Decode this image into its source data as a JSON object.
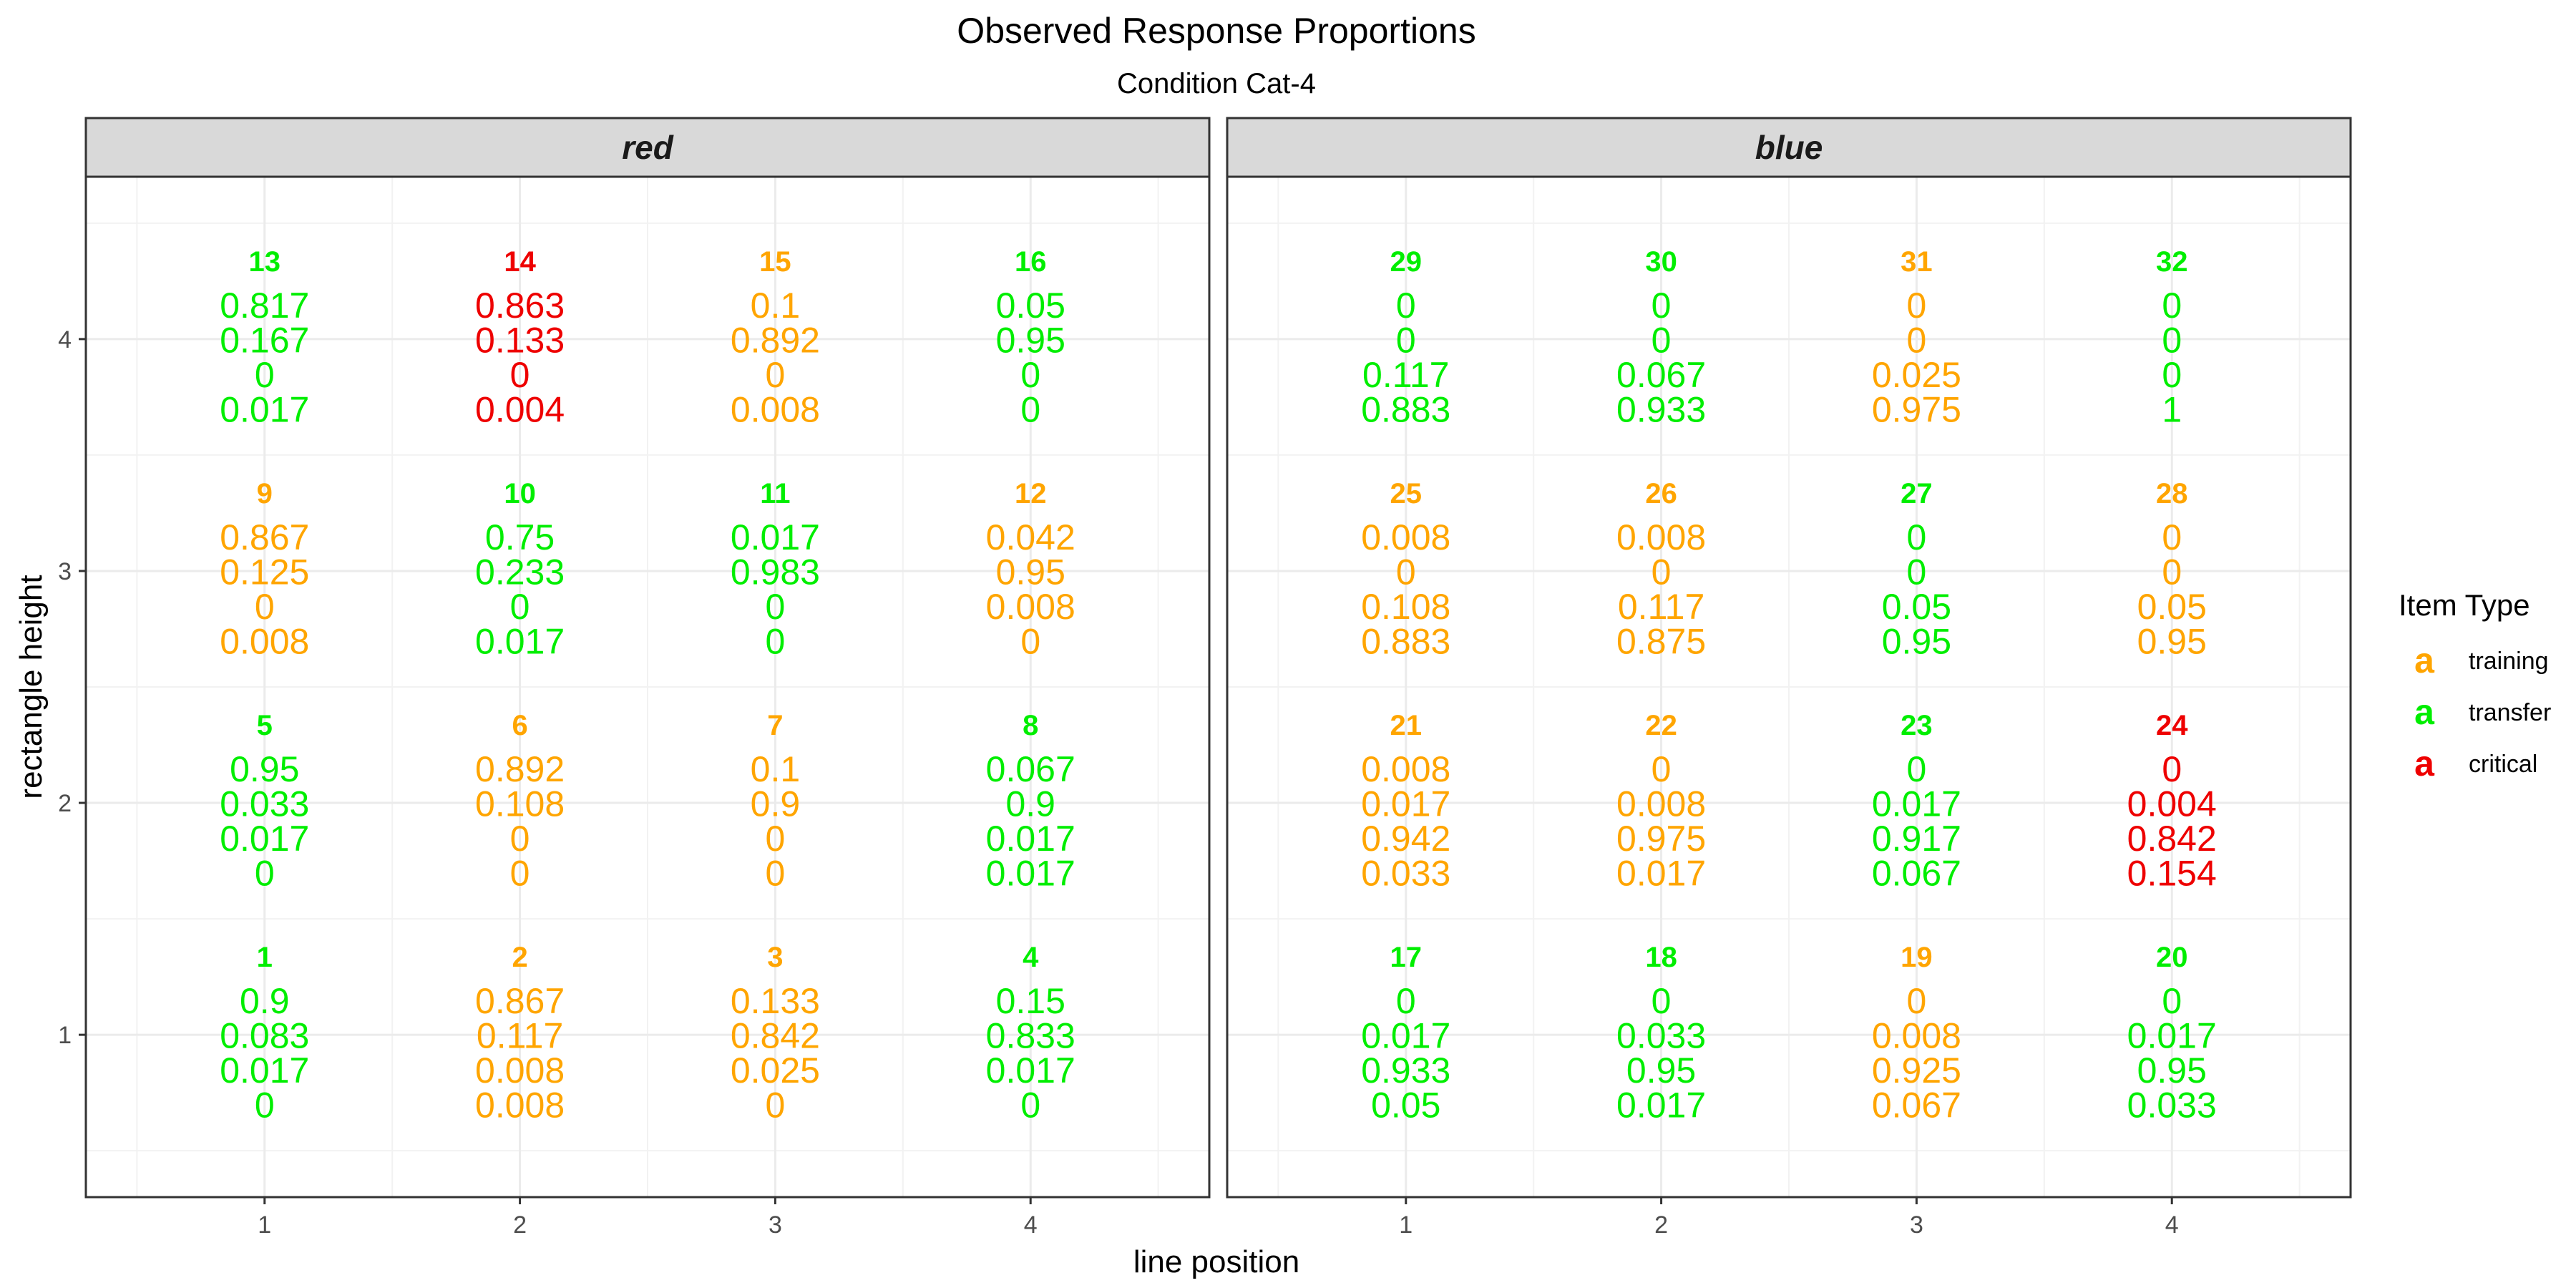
{
  "chart_data": {
    "type": "table",
    "title": "Observed Response Proportions",
    "subtitle": "Condition Cat-4",
    "xlabel": "line position",
    "ylabel": "rectangle height",
    "x_ticks": [
      "1",
      "2",
      "3",
      "4"
    ],
    "y_ticks": [
      "1",
      "2",
      "3",
      "4"
    ],
    "xlim": [
      0.3,
      4.7
    ],
    "ylim": [
      0.3,
      4.7
    ],
    "grid": true,
    "legend": {
      "title": "Item Type",
      "placement": "right",
      "key_glyph": "a",
      "items": [
        {
          "type": "training",
          "label": "training",
          "color": "#FFA500"
        },
        {
          "type": "transfer",
          "label": "transfer",
          "color": "#00EE00"
        },
        {
          "type": "critical",
          "label": "critical",
          "color": "#EE0000"
        }
      ]
    },
    "colors": {
      "training": "#FFA500",
      "transfer": "#00EE00",
      "critical": "#EE0000"
    },
    "panels": [
      {
        "label": "red",
        "items": [
          {
            "id": "13",
            "x": 1,
            "y": 4,
            "type": "transfer",
            "values": [
              "0.817",
              "0.167",
              "0",
              "0.017"
            ]
          },
          {
            "id": "14",
            "x": 2,
            "y": 4,
            "type": "critical",
            "values": [
              "0.863",
              "0.133",
              "0",
              "0.004"
            ]
          },
          {
            "id": "15",
            "x": 3,
            "y": 4,
            "type": "training",
            "values": [
              "0.1",
              "0.892",
              "0",
              "0.008"
            ]
          },
          {
            "id": "16",
            "x": 4,
            "y": 4,
            "type": "transfer",
            "values": [
              "0.05",
              "0.95",
              "0",
              "0"
            ]
          },
          {
            "id": "9",
            "x": 1,
            "y": 3,
            "type": "training",
            "values": [
              "0.867",
              "0.125",
              "0",
              "0.008"
            ]
          },
          {
            "id": "10",
            "x": 2,
            "y": 3,
            "type": "transfer",
            "values": [
              "0.75",
              "0.233",
              "0",
              "0.017"
            ]
          },
          {
            "id": "11",
            "x": 3,
            "y": 3,
            "type": "transfer",
            "values": [
              "0.017",
              "0.983",
              "0",
              "0"
            ]
          },
          {
            "id": "12",
            "x": 4,
            "y": 3,
            "type": "training",
            "values": [
              "0.042",
              "0.95",
              "0.008",
              "0"
            ]
          },
          {
            "id": "5",
            "x": 1,
            "y": 2,
            "type": "transfer",
            "values": [
              "0.95",
              "0.033",
              "0.017",
              "0"
            ]
          },
          {
            "id": "6",
            "x": 2,
            "y": 2,
            "type": "training",
            "values": [
              "0.892",
              "0.108",
              "0",
              "0"
            ]
          },
          {
            "id": "7",
            "x": 3,
            "y": 2,
            "type": "training",
            "values": [
              "0.1",
              "0.9",
              "0",
              "0"
            ]
          },
          {
            "id": "8",
            "x": 4,
            "y": 2,
            "type": "transfer",
            "values": [
              "0.067",
              "0.9",
              "0.017",
              "0.017"
            ]
          },
          {
            "id": "1",
            "x": 1,
            "y": 1,
            "type": "transfer",
            "values": [
              "0.9",
              "0.083",
              "0.017",
              "0"
            ]
          },
          {
            "id": "2",
            "x": 2,
            "y": 1,
            "type": "training",
            "values": [
              "0.867",
              "0.117",
              "0.008",
              "0.008"
            ]
          },
          {
            "id": "3",
            "x": 3,
            "y": 1,
            "type": "training",
            "values": [
              "0.133",
              "0.842",
              "0.025",
              "0"
            ]
          },
          {
            "id": "4",
            "x": 4,
            "y": 1,
            "type": "transfer",
            "values": [
              "0.15",
              "0.833",
              "0.017",
              "0"
            ]
          }
        ]
      },
      {
        "label": "blue",
        "items": [
          {
            "id": "29",
            "x": 1,
            "y": 4,
            "type": "transfer",
            "values": [
              "0",
              "0",
              "0.117",
              "0.883"
            ]
          },
          {
            "id": "30",
            "x": 2,
            "y": 4,
            "type": "transfer",
            "values": [
              "0",
              "0",
              "0.067",
              "0.933"
            ]
          },
          {
            "id": "31",
            "x": 3,
            "y": 4,
            "type": "training",
            "values": [
              "0",
              "0",
              "0.025",
              "0.975"
            ]
          },
          {
            "id": "32",
            "x": 4,
            "y": 4,
            "type": "transfer",
            "values": [
              "0",
              "0",
              "0",
              "1"
            ]
          },
          {
            "id": "25",
            "x": 1,
            "y": 3,
            "type": "training",
            "values": [
              "0.008",
              "0",
              "0.108",
              "0.883"
            ]
          },
          {
            "id": "26",
            "x": 2,
            "y": 3,
            "type": "training",
            "values": [
              "0.008",
              "0",
              "0.117",
              "0.875"
            ]
          },
          {
            "id": "27",
            "x": 3,
            "y": 3,
            "type": "transfer",
            "values": [
              "0",
              "0",
              "0.05",
              "0.95"
            ]
          },
          {
            "id": "28",
            "x": 4,
            "y": 3,
            "type": "training",
            "values": [
              "0",
              "0",
              "0.05",
              "0.95"
            ]
          },
          {
            "id": "21",
            "x": 1,
            "y": 2,
            "type": "training",
            "values": [
              "0.008",
              "0.017",
              "0.942",
              "0.033"
            ]
          },
          {
            "id": "22",
            "x": 2,
            "y": 2,
            "type": "training",
            "values": [
              "0",
              "0.008",
              "0.975",
              "0.017"
            ]
          },
          {
            "id": "23",
            "x": 3,
            "y": 2,
            "type": "transfer",
            "values": [
              "0",
              "0.017",
              "0.917",
              "0.067"
            ]
          },
          {
            "id": "24",
            "x": 4,
            "y": 2,
            "type": "critical",
            "values": [
              "0",
              "0.004",
              "0.842",
              "0.154"
            ]
          },
          {
            "id": "17",
            "x": 1,
            "y": 1,
            "type": "transfer",
            "values": [
              "0",
              "0.017",
              "0.933",
              "0.05"
            ]
          },
          {
            "id": "18",
            "x": 2,
            "y": 1,
            "type": "transfer",
            "values": [
              "0",
              "0.033",
              "0.95",
              "0.017"
            ]
          },
          {
            "id": "19",
            "x": 3,
            "y": 1,
            "type": "training",
            "values": [
              "0",
              "0.008",
              "0.925",
              "0.067"
            ]
          },
          {
            "id": "20",
            "x": 4,
            "y": 1,
            "type": "transfer",
            "values": [
              "0",
              "0.017",
              "0.95",
              "0.033"
            ]
          }
        ]
      }
    ]
  }
}
